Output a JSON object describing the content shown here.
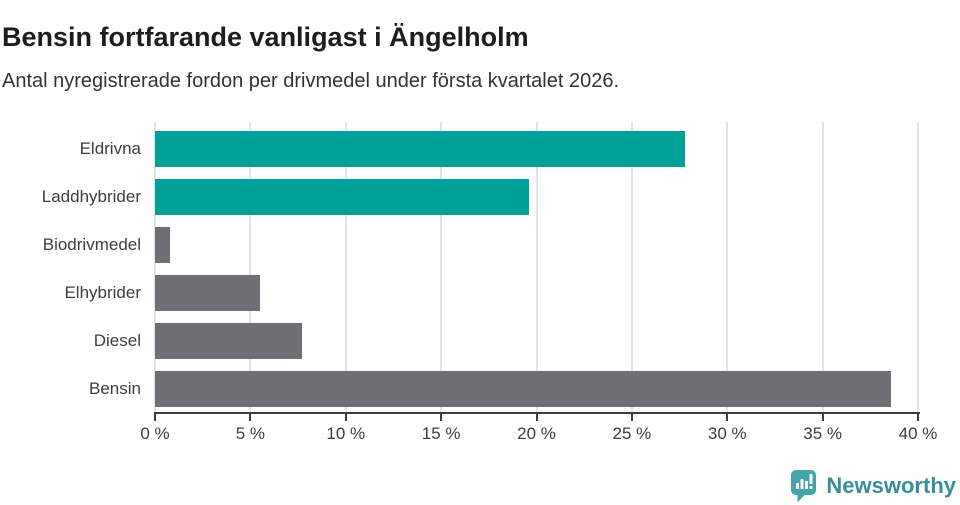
{
  "header": {
    "title": "Bensin fortfarande vanligast i Ängelholm",
    "subtitle": "Antal nyregistrerade fordon per drivmedel under första kvartalet 2026."
  },
  "chart_data": {
    "type": "bar",
    "orientation": "horizontal",
    "title": "Bensin fortfarande vanligast i Ängelholm",
    "subtitle": "Antal nyregistrerade fordon per drivmedel under första kvartalet 2026.",
    "categories": [
      "Eldrivna",
      "Laddhybrider",
      "Biodrivmedel",
      "Elhybrider",
      "Diesel",
      "Bensin"
    ],
    "values": [
      27.8,
      19.6,
      0.8,
      5.5,
      7.7,
      38.6
    ],
    "unit": "%",
    "xlabel": "",
    "ylabel": "",
    "xlim": [
      0,
      40
    ],
    "x_ticks": [
      0,
      5,
      10,
      15,
      20,
      25,
      30,
      35,
      40
    ],
    "x_tick_labels": [
      "0 %",
      "5 %",
      "10 %",
      "15 %",
      "20 %",
      "25 %",
      "30 %",
      "35 %",
      "40 %"
    ],
    "grid": true,
    "legend": false,
    "bar_colors": [
      "#00a099",
      "#00a099",
      "#6e6e74",
      "#6e6e74",
      "#6e6e74",
      "#6e6e74"
    ]
  },
  "colors": {
    "highlight": "#00a099",
    "default_bar": "#6e6e74",
    "gridline": "#e3e3e3",
    "axis": "#3d3d3d",
    "title": "#1d1d1b",
    "subtitle": "#333333",
    "brand_text": "#3a8f96",
    "brand_icon": "#44a4ab",
    "background": "#ffffff"
  },
  "footer": {
    "brand_label": "Newsworthy"
  }
}
